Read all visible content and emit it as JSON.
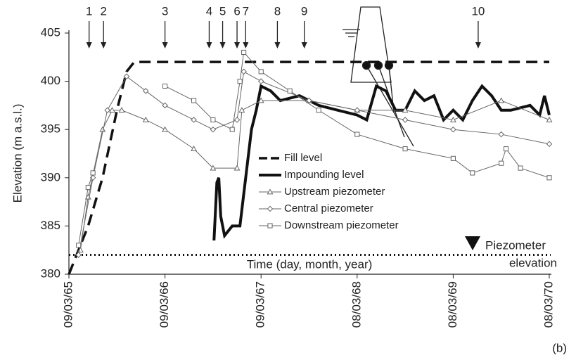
{
  "chart_data": {
    "type": "line",
    "y_label": "Elevation (m a.s.l.)",
    "x_label": "Time (day, month, year)",
    "annotation": "(b)",
    "xlim": [
      65,
      70
    ],
    "xticks": [
      {
        "value": 65,
        "label": "09/03/65"
      },
      {
        "value": 66,
        "label": "09/03/66"
      },
      {
        "value": 67,
        "label": "09/03/67"
      },
      {
        "value": 68,
        "label": "08/03/68"
      },
      {
        "value": 69,
        "label": "08/03/69"
      },
      {
        "value": 70,
        "label": "08/03/70"
      }
    ],
    "ylim": [
      380,
      405
    ],
    "yticks": [
      380,
      385,
      390,
      395,
      400,
      405
    ],
    "legend": "center",
    "series": [
      {
        "name": "Fill level",
        "color": "#111111",
        "dash": "dashed",
        "width": 3.5,
        "marker": "none",
        "x": [
          65.0,
          65.2,
          65.35,
          65.5,
          65.6,
          65.68,
          70.0
        ],
        "values": [
          380,
          385,
          390,
          397,
          401,
          402,
          402
        ]
      },
      {
        "name": "Impounding level",
        "color": "#111111",
        "dash": "solid",
        "width": 4,
        "marker": "none",
        "x": [
          66.51,
          66.54,
          66.56,
          66.58,
          66.62,
          66.7,
          66.78,
          66.84,
          66.9,
          66.95,
          67.0,
          67.1,
          67.2,
          67.4,
          67.6,
          67.8,
          68.0,
          68.1,
          68.2,
          68.3,
          68.4,
          68.5,
          68.6,
          68.7,
          68.8,
          68.9,
          69.0,
          69.1,
          69.2,
          69.3,
          69.4,
          69.5,
          69.6,
          69.8,
          69.9,
          69.95,
          70.0
        ],
        "values": [
          383.5,
          389.5,
          390,
          386,
          384,
          385,
          385,
          390,
          395,
          397,
          399.5,
          399,
          398,
          398.5,
          397.5,
          397,
          396.5,
          396,
          399.5,
          399,
          397,
          397,
          399,
          398,
          398.5,
          396,
          397,
          396,
          398,
          399.5,
          398.5,
          397,
          397,
          397.5,
          396.5,
          398.5,
          396.5
        ]
      },
      {
        "name": "Upstream piezometer",
        "color": "#666666",
        "dash": "solid",
        "width": 1,
        "marker": "triangle",
        "x": [
          65.12,
          65.2,
          65.35,
          65.45,
          65.55,
          65.8,
          66.0,
          66.3,
          66.5,
          66.75,
          66.8,
          67.0,
          67.5,
          68.0,
          68.5,
          69.0,
          69.5,
          70.0
        ],
        "values": [
          382.5,
          388,
          395,
          397,
          397,
          396,
          395,
          393,
          391,
          391,
          397,
          398,
          398,
          397,
          397,
          396,
          398,
          396
        ]
      },
      {
        "name": "Central piezometer",
        "color": "#666666",
        "dash": "solid",
        "width": 1,
        "marker": "diamond",
        "x": [
          65.1,
          65.25,
          65.4,
          65.6,
          65.8,
          66.0,
          66.3,
          66.5,
          66.75,
          66.82,
          67.0,
          67.5,
          68.0,
          68.5,
          69.0,
          69.5,
          70.0
        ],
        "values": [
          382,
          390,
          397,
          400.5,
          399,
          397.5,
          396,
          395,
          396,
          401,
          400,
          398,
          397,
          396,
          395,
          394.5,
          393.5
        ]
      },
      {
        "name": "Downstream piezometer",
        "color": "#666666",
        "dash": "solid",
        "width": 1,
        "marker": "square",
        "x": [
          65.1,
          65.2,
          65.25,
          65.5,
          66.0,
          66.3,
          66.5,
          66.7,
          66.78,
          66.82,
          67.0,
          67.3,
          67.6,
          68.0,
          68.5,
          69.0,
          69.2,
          69.5,
          69.55,
          69.7,
          70.0
        ],
        "values": [
          383,
          389,
          390.5,
          null,
          399.5,
          398,
          396,
          395,
          400,
          403,
          401,
          399,
          397,
          394.5,
          393,
          392,
          390.5,
          391.5,
          393,
          391,
          390
        ]
      }
    ],
    "reference_line": {
      "value": 382,
      "lines": [
        "Piezometer",
        "elevation"
      ]
    },
    "events": [
      {
        "label": "1",
        "x": 65.21
      },
      {
        "label": "2",
        "x": 65.36
      },
      {
        "label": "3",
        "x": 66.0
      },
      {
        "label": "4",
        "x": 66.46
      },
      {
        "label": "5",
        "x": 66.6
      },
      {
        "label": "6",
        "x": 66.75
      },
      {
        "label": "7",
        "x": 66.84
      },
      {
        "label": "8",
        "x": 67.17
      },
      {
        "label": "9",
        "x": 67.45
      },
      {
        "label": "10",
        "x": 69.26
      }
    ]
  }
}
